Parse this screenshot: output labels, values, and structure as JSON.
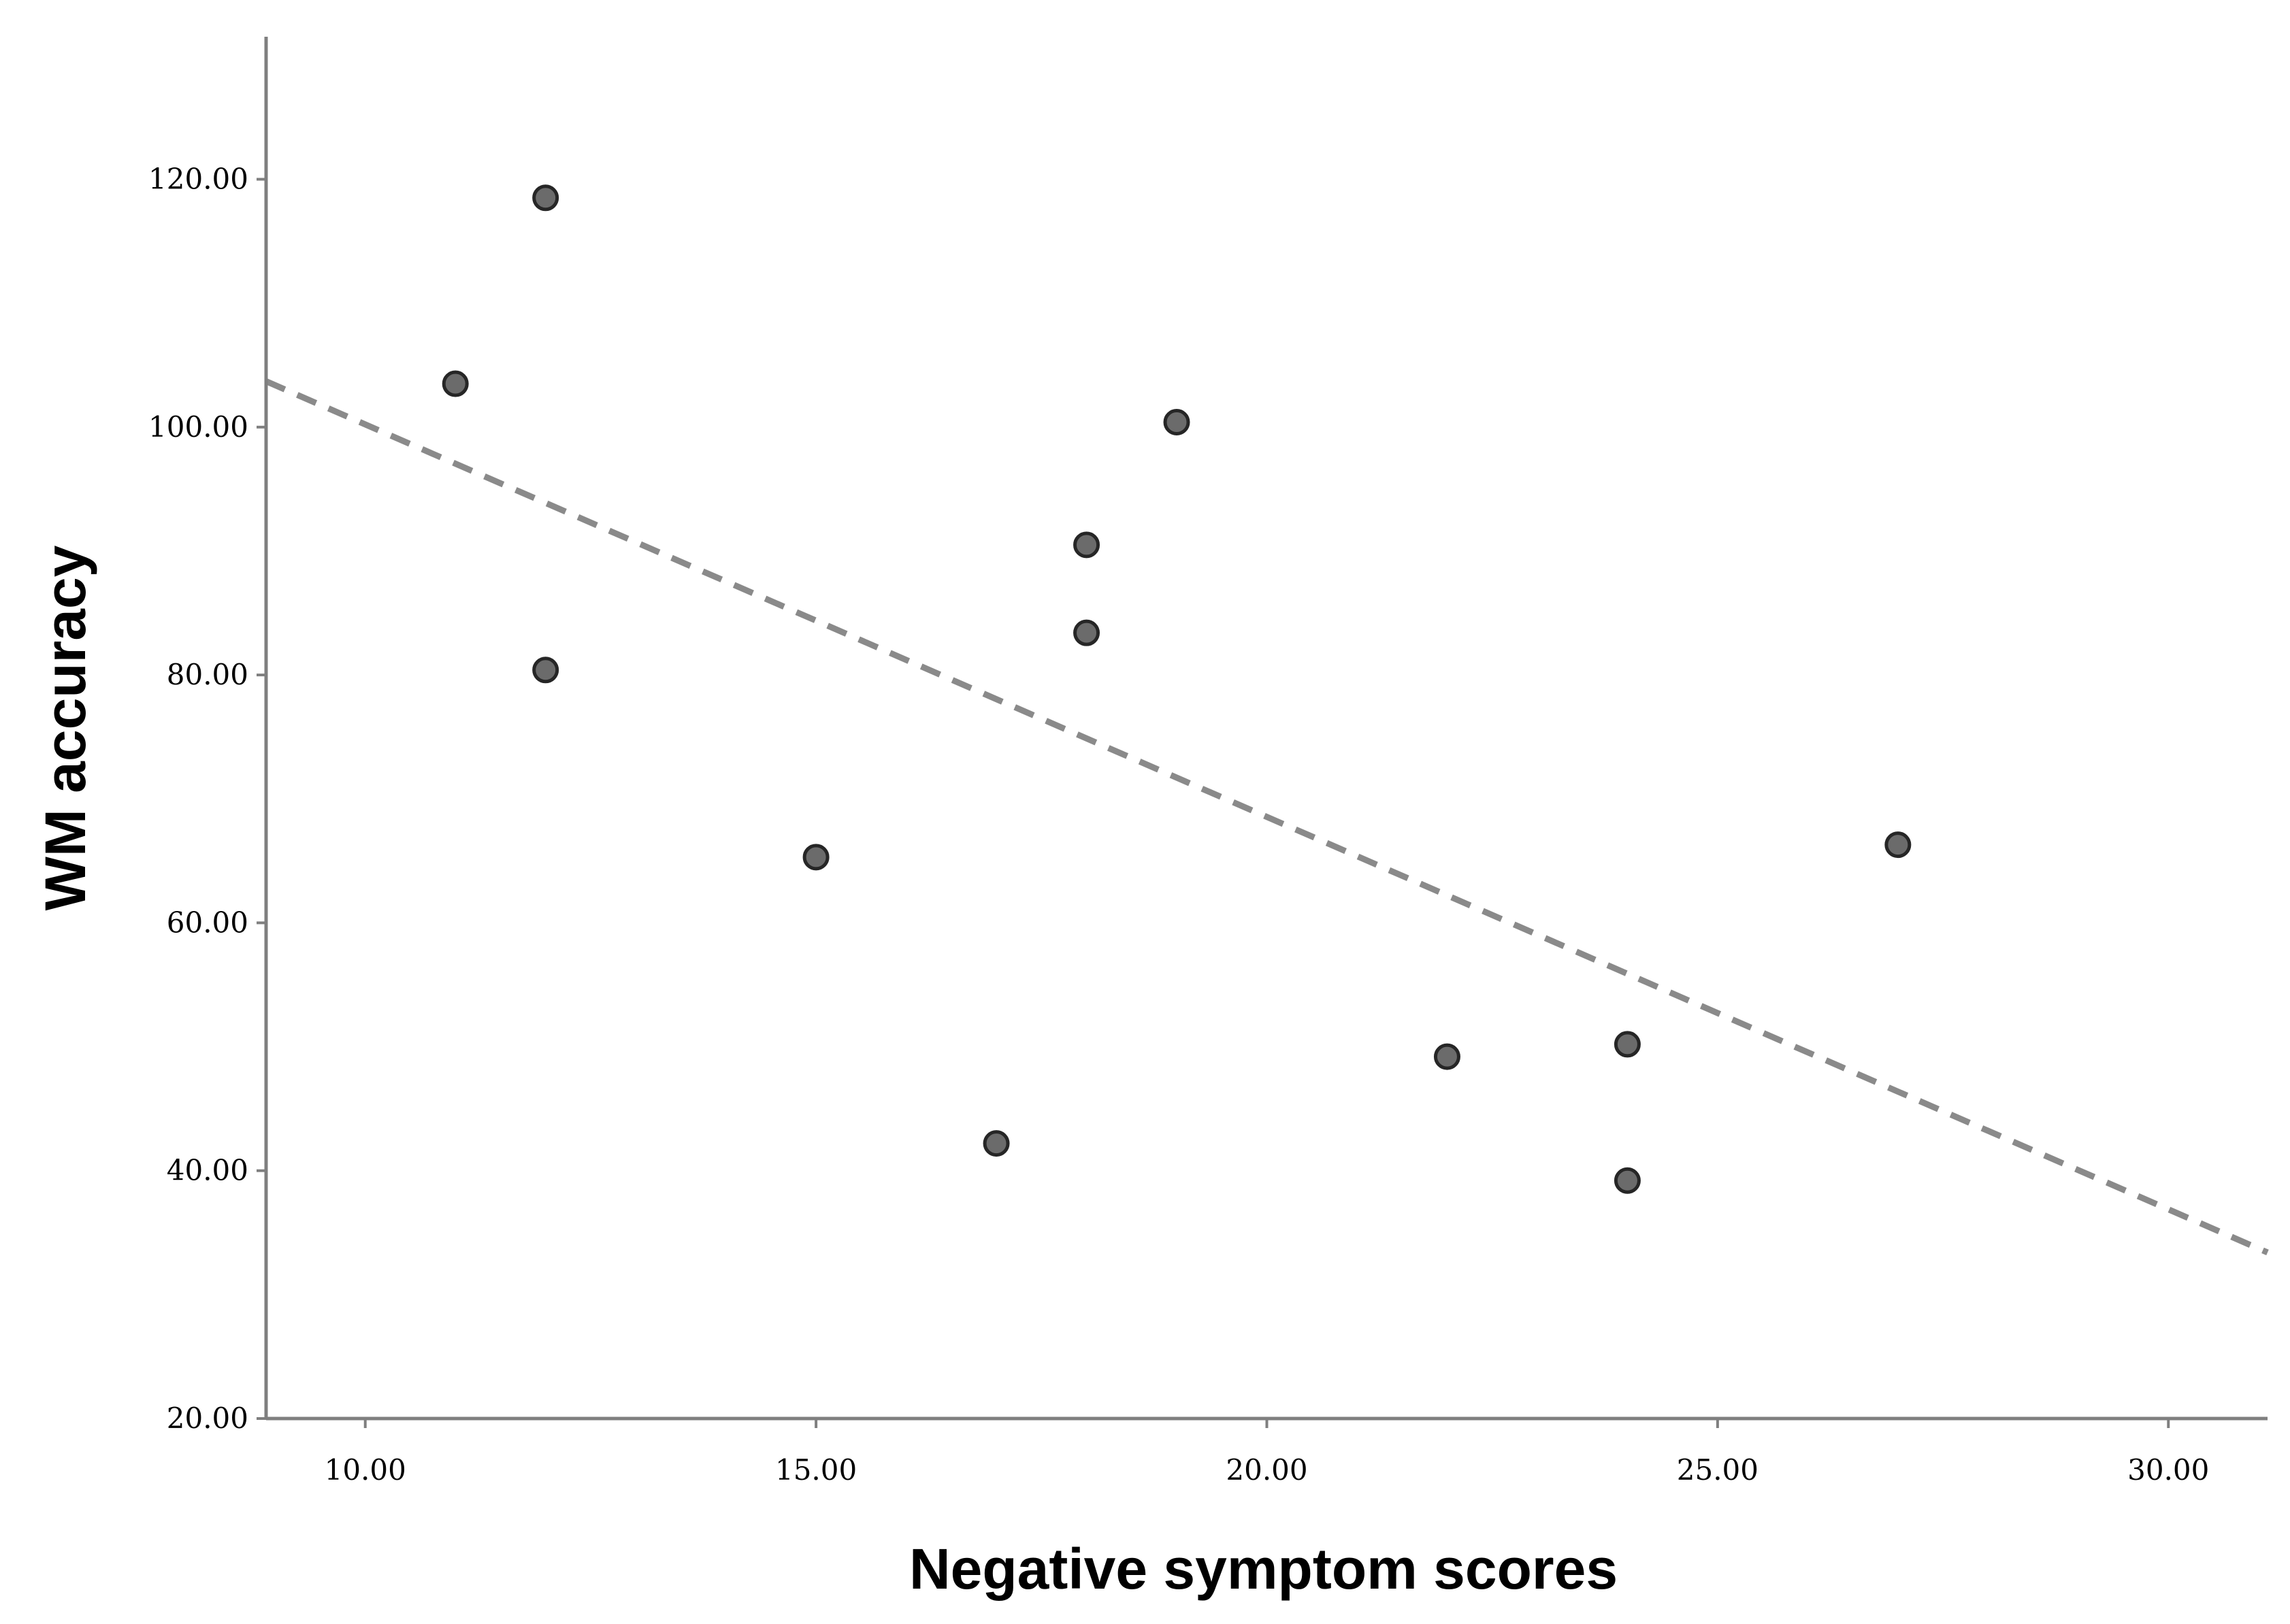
{
  "chart_data": {
    "type": "scatter",
    "title": "",
    "xlabel": "Negative symptom scores",
    "ylabel": "WM accuracy",
    "xlim": [
      8.9,
      31.1
    ],
    "ylim": [
      20,
      131.5
    ],
    "x_ticks": [
      10,
      15,
      20,
      25,
      30
    ],
    "y_ticks": [
      20,
      40,
      60,
      80,
      100,
      120
    ],
    "x_tick_labels": [
      "10.00",
      "15.00",
      "20.00",
      "25.00",
      "30.00"
    ],
    "y_tick_labels": [
      "20.00",
      "40.00",
      "60.00",
      "80.00",
      "100.00",
      "120.00"
    ],
    "grid": false,
    "series": [
      {
        "name": "WM accuracy",
        "color": "#6b6b6b",
        "edge_color": "#262626",
        "points": [
          {
            "x": 11,
            "y": 103.5
          },
          {
            "x": 12,
            "y": 118.5
          },
          {
            "x": 12,
            "y": 80.4
          },
          {
            "x": 15,
            "y": 65.3
          },
          {
            "x": 17,
            "y": 42.2
          },
          {
            "x": 18,
            "y": 90.5
          },
          {
            "x": 18,
            "y": 83.4
          },
          {
            "x": 19,
            "y": 100.4
          },
          {
            "x": 22,
            "y": 49.2
          },
          {
            "x": 24,
            "y": 50.2
          },
          {
            "x": 24,
            "y": 39.2
          },
          {
            "x": 27,
            "y": 66.3
          }
        ]
      }
    ],
    "fit_line": {
      "style": "dashed",
      "color": "#8a8a8a",
      "x": [
        8.9,
        31.1
      ],
      "y": [
        103.7,
        33.4
      ]
    }
  }
}
